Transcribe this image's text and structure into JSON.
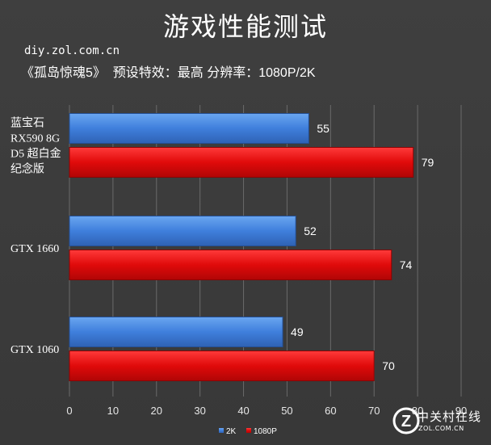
{
  "page": {
    "title": "游戏性能测试",
    "site": "diy.zol.com.cn",
    "subtitle": "《孤岛惊魂5》  预设特效：最高 分辨率：1080P/2K"
  },
  "watermark": {
    "brand_cn": "中关村在线",
    "brand_en": "ZOL.COM.CN",
    "logo_letter": "Z"
  },
  "colors": {
    "series_2k": "#3f7fdc",
    "series_1080p": "#e00a0a",
    "background": "#3c3c3c"
  },
  "chart_data": {
    "type": "bar",
    "orientation": "horizontal",
    "categories": [
      [
        "蓝宝石",
        "RX590 8G",
        "D5 超白金",
        "纪念版"
      ],
      [
        "GTX 1660"
      ],
      [
        "GTX 1060"
      ]
    ],
    "series": [
      {
        "name": "2K",
        "values": [
          55,
          52,
          49
        ]
      },
      {
        "name": "1080P",
        "values": [
          79,
          74,
          70
        ]
      }
    ],
    "xlim": [
      0,
      90
    ],
    "xticks": [
      0,
      10,
      20,
      30,
      40,
      50,
      60,
      70,
      80,
      90
    ],
    "grid": "vertical",
    "legend": "bottom",
    "data_labels": true
  }
}
